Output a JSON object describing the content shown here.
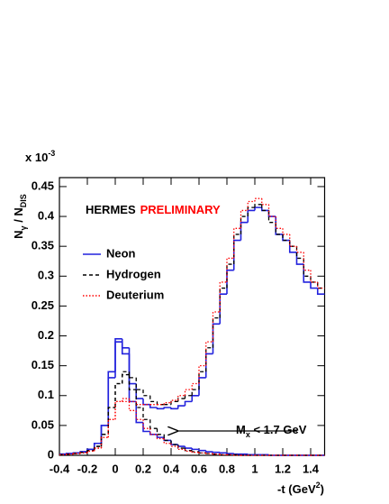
{
  "chart_data": {
    "type": "histogram",
    "multiplier": [
      "x 10",
      "-3"
    ],
    "y_label": [
      "N",
      "γ",
      " / N",
      "DIS"
    ],
    "x_label": [
      "-t (GeV",
      "2",
      ")"
    ],
    "stamp": [
      {
        "text": "HERMES",
        "color": "#000000"
      },
      {
        "text": "PRELIMINARY",
        "color": "#ff0000"
      }
    ],
    "annotation": [
      "M",
      "x",
      " < 1.7 GeV"
    ],
    "bins": [
      -0.4,
      -0.35,
      -0.3,
      -0.25,
      -0.2,
      -0.15,
      -0.1,
      -0.05,
      0,
      0.05,
      0.1,
      0.15,
      0.2,
      0.25,
      0.3,
      0.35,
      0.4,
      0.45,
      0.5,
      0.55,
      0.6,
      0.65,
      0.7,
      0.75,
      0.8,
      0.85,
      0.9,
      0.95,
      1,
      1.05,
      1.1,
      1.15,
      1.2,
      1.25,
      1.3,
      1.35,
      1.4,
      1.45,
      1.5
    ],
    "series": [
      {
        "name": "Neon",
        "color": "#2222dd",
        "style": "solid",
        "values": [
          0.002,
          0.003,
          0.004,
          0.006,
          0.01,
          0.02,
          0.05,
          0.14,
          0.195,
          0.18,
          0.12,
          0.095,
          0.085,
          0.08,
          0.078,
          0.08,
          0.078,
          0.083,
          0.09,
          0.1,
          0.13,
          0.17,
          0.22,
          0.27,
          0.31,
          0.36,
          0.39,
          0.41,
          0.415,
          0.41,
          0.4,
          0.37,
          0.36,
          0.34,
          0.32,
          0.29,
          0.28,
          0.27
        ],
        "subset_values": [
          0.002,
          0.003,
          0.004,
          0.006,
          0.01,
          0.02,
          0.05,
          0.13,
          0.19,
          0.17,
          0.09,
          0.055,
          0.04,
          0.035,
          0.03,
          0.025,
          0.018,
          0.015,
          0.012,
          0.01,
          0.008,
          0.006,
          0.005,
          0.004,
          0.003,
          0.002,
          0.002,
          0.001,
          0.001,
          0.001,
          0,
          0,
          0,
          0,
          0,
          0,
          0,
          0
        ]
      },
      {
        "name": "Hydrogen",
        "color": "#000000",
        "style": "dashed",
        "values": [
          0.001,
          0.002,
          0.003,
          0.005,
          0.008,
          0.015,
          0.035,
          0.08,
          0.12,
          0.14,
          0.13,
          0.11,
          0.1,
          0.09,
          0.085,
          0.085,
          0.09,
          0.095,
          0.1,
          0.11,
          0.14,
          0.18,
          0.23,
          0.28,
          0.32,
          0.37,
          0.4,
          0.415,
          0.42,
          0.41,
          0.39,
          0.37,
          0.36,
          0.35,
          0.33,
          0.3,
          0.29,
          0.28
        ],
        "subset_values": [
          0.001,
          0.002,
          0.003,
          0.005,
          0.008,
          0.015,
          0.035,
          0.08,
          0.12,
          0.135,
          0.11,
          0.08,
          0.06,
          0.045,
          0.035,
          0.025,
          0.018,
          0.012,
          0.008,
          0.006,
          0.004,
          0.003,
          0.002,
          0.001,
          0.001,
          0.001,
          0,
          0,
          0,
          0,
          0,
          0,
          0,
          0,
          0,
          0,
          0,
          0
        ]
      },
      {
        "name": "Deuterium",
        "color": "#ff0000",
        "style": "dotted",
        "values": [
          0.001,
          0.002,
          0.003,
          0.004,
          0.007,
          0.012,
          0.03,
          0.06,
          0.09,
          0.095,
          0.09,
          0.085,
          0.085,
          0.085,
          0.085,
          0.088,
          0.092,
          0.1,
          0.11,
          0.12,
          0.15,
          0.19,
          0.24,
          0.29,
          0.33,
          0.38,
          0.41,
          0.425,
          0.43,
          0.42,
          0.4,
          0.38,
          0.37,
          0.35,
          0.34,
          0.31,
          0.29,
          0.28
        ],
        "subset_values": [
          0.001,
          0.002,
          0.003,
          0.004,
          0.007,
          0.012,
          0.03,
          0.06,
          0.09,
          0.09,
          0.075,
          0.06,
          0.045,
          0.035,
          0.028,
          0.02,
          0.015,
          0.01,
          0.007,
          0.005,
          0.004,
          0.003,
          0.002,
          0.001,
          0.001,
          0,
          0,
          0,
          0,
          0,
          0,
          0,
          0,
          0,
          0,
          0,
          0,
          0
        ]
      }
    ],
    "xlim": [
      -0.4,
      1.5
    ],
    "ylim": [
      0,
      0.465
    ],
    "xticks": [
      -0.4,
      -0.2,
      0,
      0.2,
      0.4,
      0.6,
      0.8,
      1,
      1.2,
      1.4
    ],
    "yticks": [
      0,
      0.05,
      0.1,
      0.15,
      0.2,
      0.25,
      0.3,
      0.35,
      0.4,
      0.45
    ],
    "legend": "upper left"
  }
}
